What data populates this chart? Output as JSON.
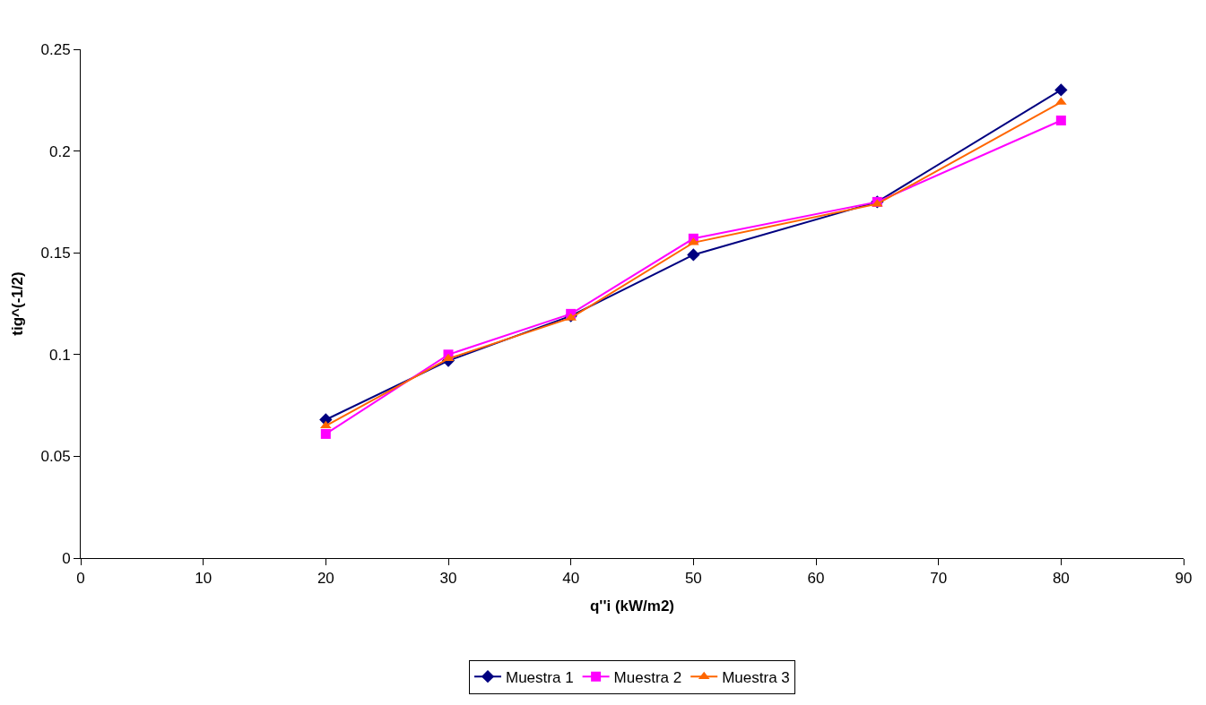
{
  "chart_data": {
    "type": "line",
    "xlabel": "q''i (kW/m2)",
    "ylabel": "tig^(-1/2)",
    "x": [
      20,
      30,
      40,
      50,
      65,
      80
    ],
    "series": [
      {
        "name": "Muestra 1",
        "color": "#000080",
        "marker": "diamond",
        "values": [
          0.068,
          0.097,
          0.119,
          0.149,
          0.175,
          0.23
        ]
      },
      {
        "name": "Muestra 2",
        "color": "#ff00ff",
        "marker": "square",
        "values": [
          0.061,
          0.1,
          0.12,
          0.157,
          0.175,
          0.215
        ]
      },
      {
        "name": "Muestra 3",
        "color": "#ff6600",
        "marker": "triangle",
        "values": [
          0.065,
          0.098,
          0.118,
          0.155,
          0.174,
          0.224
        ]
      }
    ],
    "xlim": [
      0,
      90
    ],
    "xticks": [
      0,
      10,
      20,
      30,
      40,
      50,
      60,
      70,
      80,
      90
    ],
    "ylim": [
      0,
      0.25
    ],
    "yticks": [
      0,
      0.05,
      0.1,
      0.15,
      0.2,
      0.25
    ],
    "grid": false,
    "legend": "bottom",
    "line_style": "solid"
  }
}
